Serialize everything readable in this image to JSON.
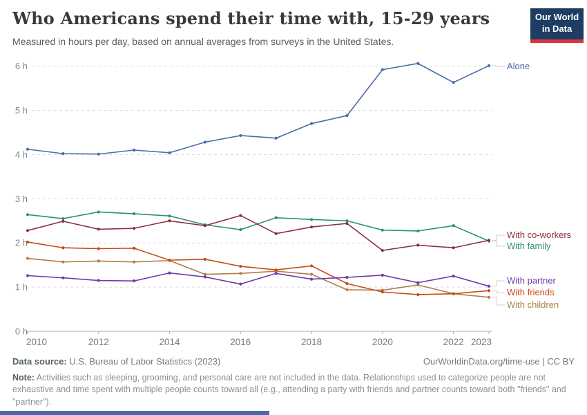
{
  "header": {
    "title": "Who Americans spend their time with, 15-29 years",
    "subtitle": "Measured in hours per day, based on annual averages from surveys in the United States.",
    "logo_line1": "Our World",
    "logo_line2": "in Data"
  },
  "chart_data": {
    "type": "line",
    "x": [
      2010,
      2011,
      2012,
      2013,
      2014,
      2015,
      2016,
      2017,
      2018,
      2019,
      2020,
      2021,
      2022,
      2023
    ],
    "series": [
      {
        "name": "Alone",
        "color": "#4a6bab",
        "values": [
          4.12,
          4.02,
          4.01,
          4.1,
          4.04,
          4.28,
          4.43,
          4.37,
          4.7,
          4.88,
          5.92,
          6.06,
          5.63,
          6.01
        ]
      },
      {
        "name": "With co-workers",
        "color": "#8b3039",
        "values": [
          2.28,
          2.49,
          2.31,
          2.33,
          2.5,
          2.39,
          2.62,
          2.21,
          2.36,
          2.44,
          1.83,
          1.95,
          1.89,
          2.06
        ]
      },
      {
        "name": "With family",
        "color": "#2b9179",
        "values": [
          2.64,
          2.55,
          2.7,
          2.66,
          2.61,
          2.41,
          2.3,
          2.57,
          2.53,
          2.5,
          2.29,
          2.27,
          2.39,
          2.04
        ]
      },
      {
        "name": "With partner",
        "color": "#6d3aaf",
        "values": [
          1.26,
          1.21,
          1.15,
          1.14,
          1.32,
          1.23,
          1.07,
          1.31,
          1.18,
          1.22,
          1.27,
          1.1,
          1.25,
          1.02
        ]
      },
      {
        "name": "With friends",
        "color": "#c74a16",
        "values": [
          2.02,
          1.89,
          1.87,
          1.88,
          1.61,
          1.63,
          1.47,
          1.39,
          1.48,
          1.08,
          0.89,
          0.83,
          0.85,
          0.92
        ]
      },
      {
        "name": "With children",
        "color": "#ae7d45",
        "values": [
          1.65,
          1.57,
          1.59,
          1.57,
          1.6,
          1.29,
          1.31,
          1.36,
          1.29,
          0.94,
          0.93,
          1.05,
          0.85,
          0.77
        ]
      }
    ],
    "title": "Who Americans spend their time with, 15-29 years",
    "xlabel": "",
    "ylabel": "hours per day",
    "ylim": [
      0,
      6
    ],
    "y_tick_labels": [
      "0 h",
      "1 h",
      "2 h",
      "3 h",
      "4 h",
      "5 h",
      "6 h"
    ],
    "x_tick_labels": [
      "2010",
      "2012",
      "2014",
      "2016",
      "2018",
      "2020",
      "2022",
      "2023"
    ],
    "grid": "horizontal-dashed",
    "legend_position": "right-edge-labels"
  },
  "footer": {
    "source_label": "Data source:",
    "source_text": " U.S. Bureau of Labor Statistics (2023)",
    "attribution": "OurWorldinData.org/time-use | CC BY",
    "note_label": "Note:",
    "note_text": " Activities such as sleeping, grooming, and personal care are not included in the data. Relationships used to categorize people are not exhaustive and time spent with multiple people counts toward all (e.g., attending a party with friends and partner counts toward both \"friends\" and \"partner\")."
  }
}
